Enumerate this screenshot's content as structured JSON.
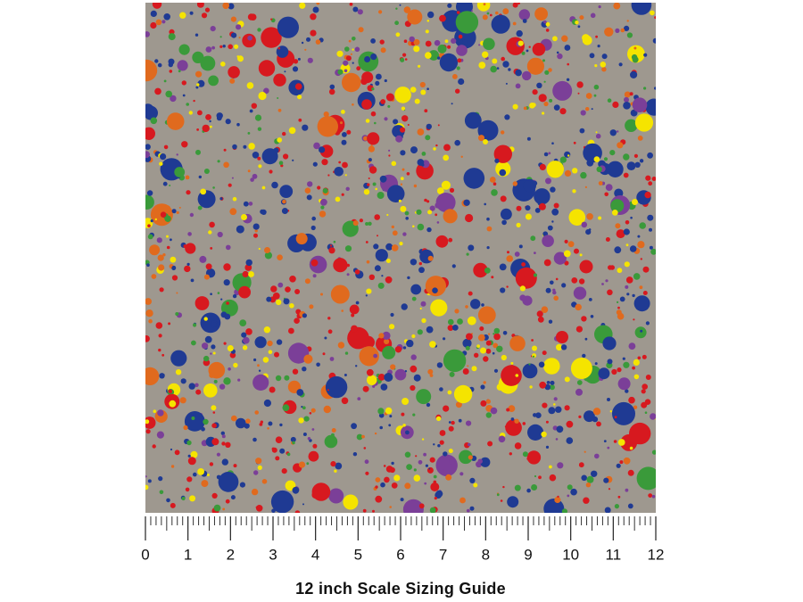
{
  "ruler": {
    "ticks": [
      0,
      1,
      2,
      3,
      4,
      5,
      6,
      7,
      8,
      9,
      10,
      11,
      12
    ]
  },
  "caption": "12 inch Scale Sizing Guide"
}
